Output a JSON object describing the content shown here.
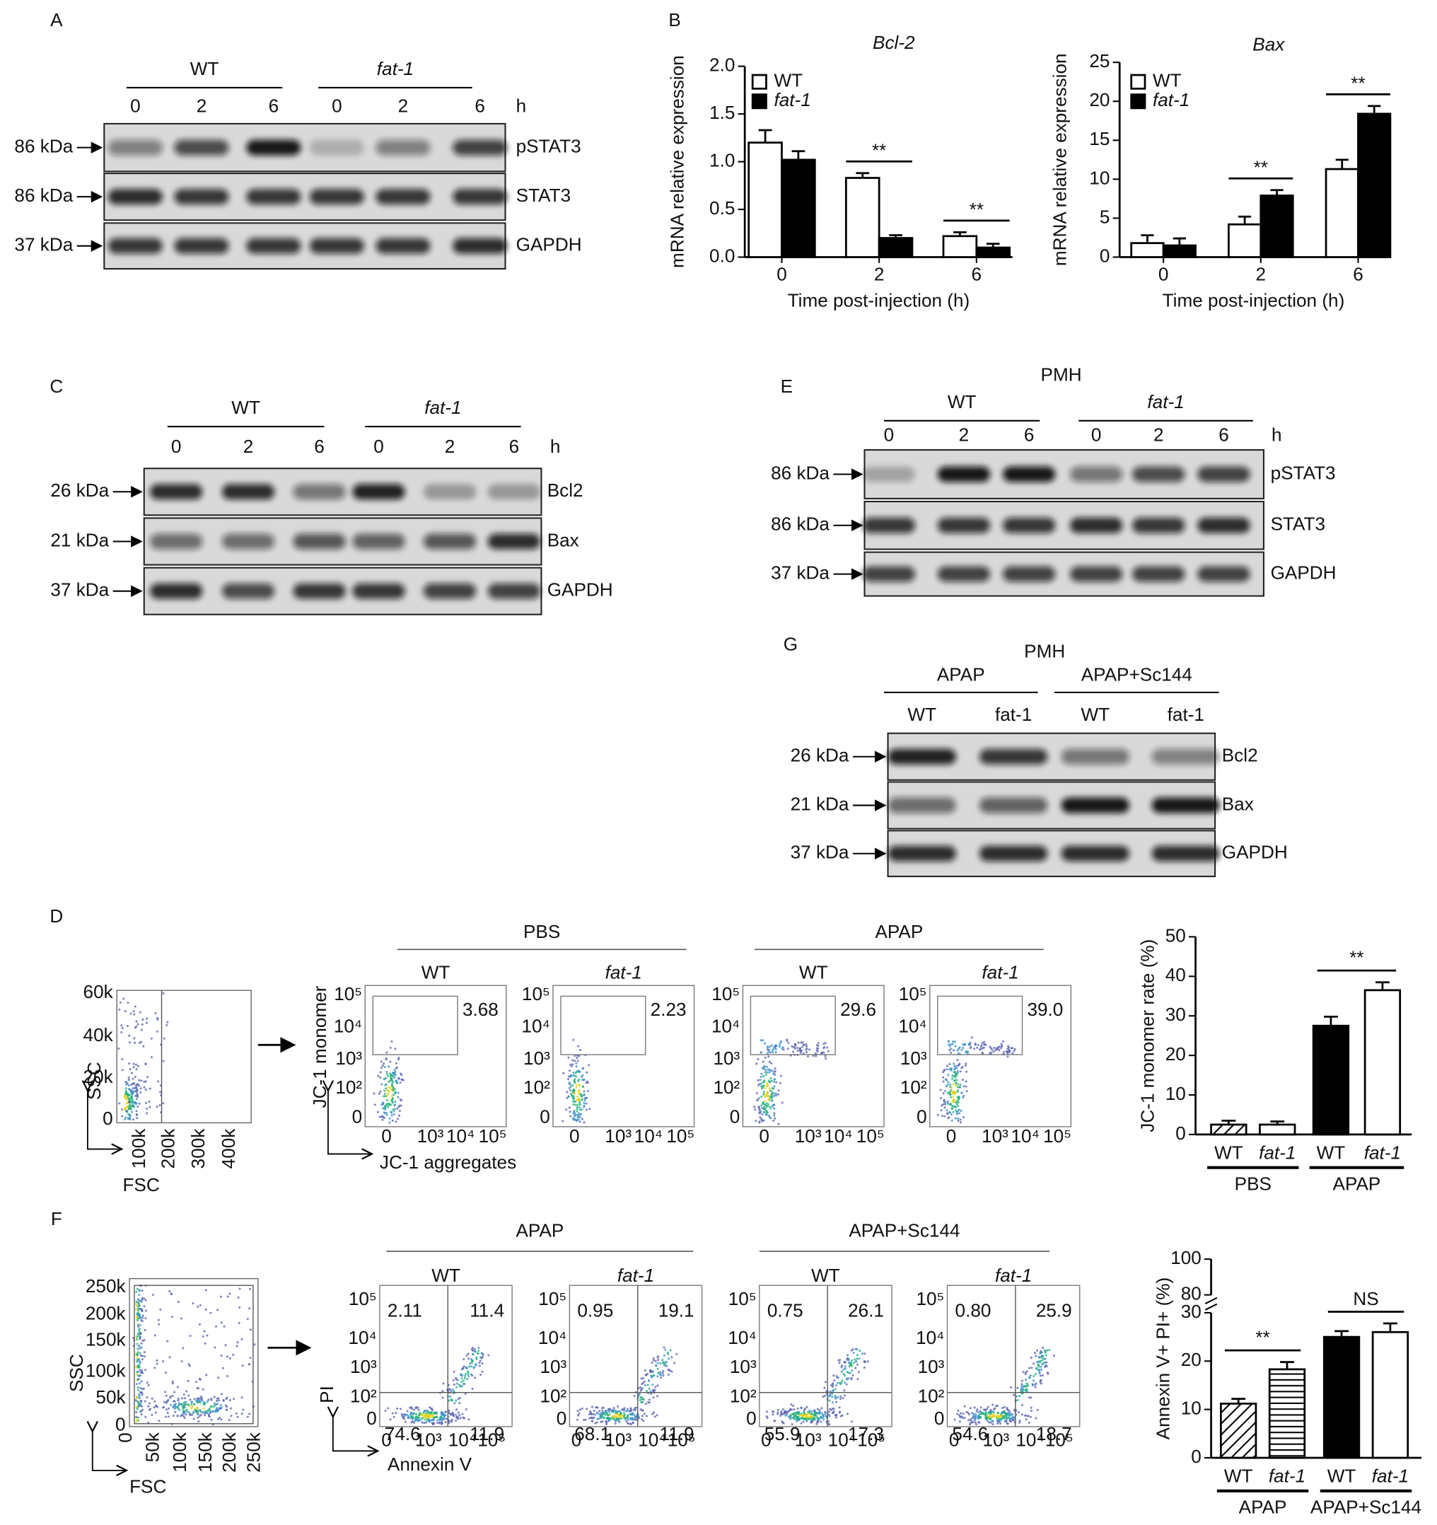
{
  "panel_labels": [
    "A",
    "B",
    "C",
    "D",
    "E",
    "F",
    "G"
  ],
  "blots": [
    {
      "groups": [
        "WT",
        "fat-1"
      ],
      "lanes": [
        "0",
        "2",
        "6",
        "0",
        "2",
        "6"
      ],
      "unit": "h",
      "rows": [
        {
          "marker": "86 kDa",
          "protein": "pSTAT3"
        },
        {
          "marker": "86 kDa",
          "protein": "STAT3"
        },
        {
          "marker": "37 kDa",
          "protein": "GAPDH"
        }
      ]
    },
    {
      "groups": [
        "WT",
        "fat-1"
      ],
      "lanes": [
        "0",
        "2",
        "6",
        "0",
        "2",
        "6"
      ],
      "unit": "h",
      "rows": [
        {
          "marker": "26 kDa",
          "protein": "Bcl2"
        },
        {
          "marker": "21 kDa",
          "protein": "Bax"
        },
        {
          "marker": "37 kDa",
          "protein": "GAPDH"
        }
      ]
    },
    {
      "header": "PMH",
      "groups": [
        "WT",
        "fat-1"
      ],
      "lanes": [
        "0",
        "2",
        "6",
        "0",
        "2",
        "6"
      ],
      "unit": "h",
      "rows": [
        {
          "marker": "86 kDa",
          "protein": "pSTAT3"
        },
        {
          "marker": "86 kDa",
          "protein": "STAT3"
        },
        {
          "marker": "37 kDa",
          "protein": "GAPDH"
        }
      ]
    },
    {
      "header": "PMH",
      "groups": [
        "APAP",
        "APAP+Sc144"
      ],
      "lanes": [
        "WT",
        "fat-1",
        "WT",
        "fat-1"
      ],
      "rows": [
        {
          "marker": "26 kDa",
          "protein": "Bcl2"
        },
        {
          "marker": "21 kDa",
          "protein": "Bax"
        },
        {
          "marker": "37 kDa",
          "protein": "GAPDH"
        }
      ]
    }
  ],
  "flow": [
    {
      "gate": {
        "ylabel": "SSC",
        "xlabel": "FSC",
        "yticks": [
          "0",
          "20k",
          "40k",
          "60k"
        ],
        "xticks": [
          "100k",
          "200k",
          "300k",
          "400k"
        ]
      },
      "groups": [
        "PBS",
        "APAP"
      ],
      "samples": [
        "WT",
        "fat-1",
        "WT",
        "fat-1"
      ],
      "ylabel": "JC-1 monomer",
      "xlabel": "JC-1 aggregates",
      "yticks": [
        "0",
        "10²",
        "10³",
        "10⁴",
        "10⁵"
      ],
      "xticks": [
        "0",
        "10³",
        "10⁴",
        "10⁵"
      ],
      "gates": [
        "3.68",
        "2.23",
        "29.6",
        "39.0"
      ]
    },
    {
      "gate": {
        "ylabel": "SSC",
        "xlabel": "FSC",
        "yticks": [
          "0",
          "50k",
          "100k",
          "150k",
          "200k",
          "250k"
        ],
        "xticks": [
          "0",
          "50k",
          "100k",
          "150k",
          "200k",
          "250k"
        ]
      },
      "groups": [
        "APAP",
        "APAP+Sc144"
      ],
      "samples": [
        "WT",
        "fat-1",
        "WT",
        "fat-1"
      ],
      "ylabel": "PI",
      "xlabel": "Annexin V",
      "yticks": [
        "0",
        "10²",
        "10³",
        "10⁴",
        "10⁵"
      ],
      "xticks": [
        "0",
        "10³",
        "10⁴",
        "10⁵"
      ],
      "quadrants": [
        [
          "2.11",
          "11.4",
          "74.6",
          "11.9"
        ],
        [
          "0.95",
          "19.1",
          "68.1",
          "11.9"
        ],
        [
          "0.75",
          "26.1",
          "55.9",
          "17.3"
        ],
        [
          "0.80",
          "25.9",
          "54.6",
          "18.7"
        ]
      ]
    }
  ],
  "chart_data": [
    {
      "type": "bar",
      "title": "Bcl-2",
      "xlabel": "Time post-injection (h)",
      "ylabel": "mRNA relative expression",
      "categories": [
        "0",
        "2",
        "6"
      ],
      "series": [
        {
          "name": "WT",
          "color": "#ffffff",
          "values": [
            1.2,
            0.83,
            0.22
          ],
          "errors": [
            0.13,
            0.05,
            0.04
          ]
        },
        {
          "name": "fat-1",
          "color": "#000000",
          "values": [
            1.02,
            0.2,
            0.1
          ],
          "errors": [
            0.09,
            0.03,
            0.04
          ]
        }
      ],
      "ylim": [
        0,
        2
      ],
      "yticks": [
        {
          "value": 0,
          "label": "0.0"
        },
        0.5,
        {
          "value": 1,
          "label": "1.0"
        },
        1.5,
        {
          "value": 2,
          "label": "2.0"
        }
      ],
      "significance": [
        null,
        "**",
        "**"
      ]
    },
    {
      "type": "bar",
      "title": "Bax",
      "xlabel": "Time post-injection (h)",
      "ylabel": "mRNA relative expression",
      "categories": [
        "0",
        "2",
        "6"
      ],
      "series": [
        {
          "name": "WT",
          "color": "#ffffff",
          "values": [
            1.8,
            4.2,
            11.3
          ],
          "errors": [
            1.0,
            1.0,
            1.2
          ]
        },
        {
          "name": "fat-1",
          "color": "#000000",
          "values": [
            1.5,
            7.9,
            18.4
          ],
          "errors": [
            0.9,
            0.7,
            1.0
          ]
        }
      ],
      "ylim": [
        0,
        25
      ],
      "yticks": [
        0,
        5,
        10,
        15,
        20,
        25
      ],
      "significance": [
        null,
        "**",
        "**"
      ]
    },
    {
      "type": "bar",
      "ylabel": "JC-1 monomer rate (%)",
      "categories": [
        "WT",
        "fat-1",
        "WT",
        "fat-1"
      ],
      "groups": [
        "PBS",
        "APAP"
      ],
      "values": [
        2.5,
        2.5,
        27.5,
        36.5
      ],
      "errors": [
        1.0,
        0.8,
        2.3,
        2.0
      ],
      "colors": [
        "#ffffff",
        "#ffffff",
        "#000000",
        "#ffffff"
      ],
      "patterns": [
        "diagonal",
        null,
        null,
        null
      ],
      "ylim": [
        0,
        50
      ],
      "yticks": [
        0,
        10,
        20,
        30,
        40,
        50
      ],
      "significance": [
        null,
        "**"
      ]
    },
    {
      "type": "bar",
      "ylabel": "Annexin V+ PI+ (%)",
      "categories": [
        "WT",
        "fat-1",
        "WT",
        "fat-1"
      ],
      "groups": [
        "APAP",
        "APAP+Sc144"
      ],
      "values": [
        11.2,
        18.3,
        25,
        26
      ],
      "errors": [
        1.0,
        1.5,
        1.2,
        1.8
      ],
      "colors": [
        "#ffffff",
        "#ffffff",
        "#000000",
        "#ffffff"
      ],
      "patterns": [
        "diagonal",
        "horizontal",
        null,
        null
      ],
      "ylim": [
        0,
        100
      ],
      "yticks": [
        0,
        10,
        20,
        30,
        80,
        100
      ],
      "axis_break": [
        30,
        80
      ],
      "significance": [
        "**",
        "NS"
      ]
    }
  ]
}
